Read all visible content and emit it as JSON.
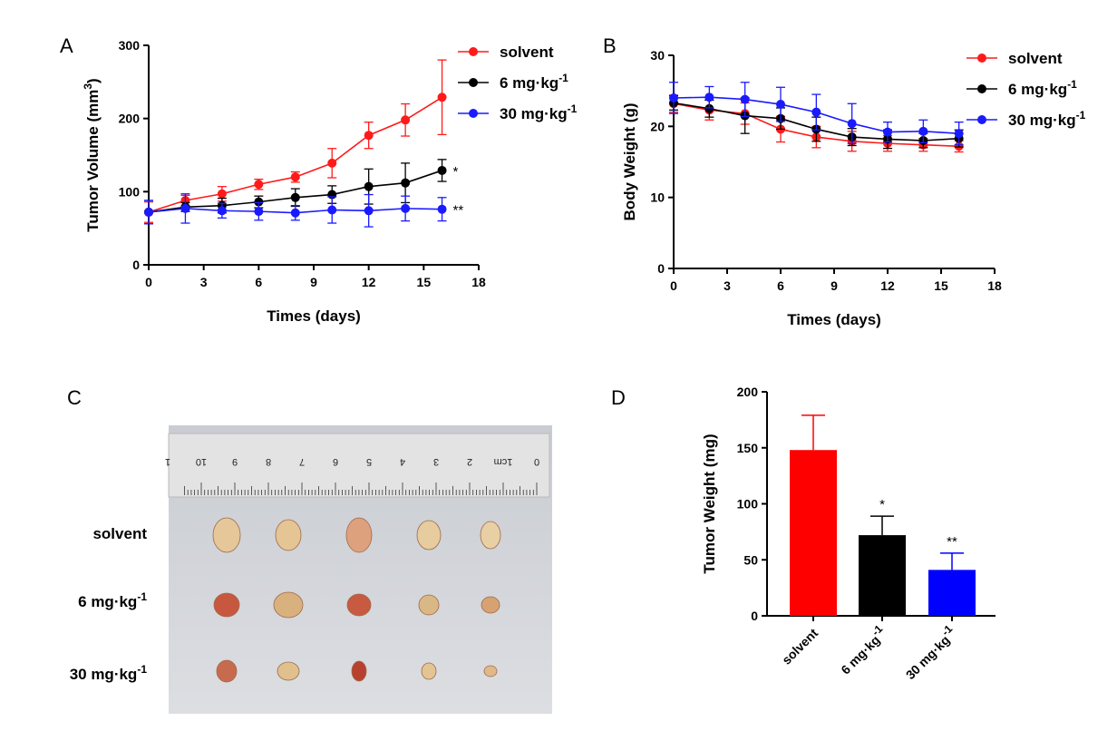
{
  "panels": {
    "a": "A",
    "b": "B",
    "c": "C",
    "d": "D"
  },
  "chart_data": [
    {
      "id": "A",
      "type": "line",
      "xlabel": "Times (days)",
      "ylabel_main": "Tumor Volume (mm",
      "ylabel_sup": "3",
      "ylabel_end": ")",
      "xlim": [
        0,
        18
      ],
      "ylim": [
        0,
        300
      ],
      "xticks": [
        0,
        3,
        6,
        9,
        12,
        15,
        18
      ],
      "yticks": [
        0,
        100,
        200,
        300
      ],
      "x": [
        0,
        2,
        4,
        6,
        8,
        10,
        12,
        14,
        16
      ],
      "series": [
        {
          "name": "solvent",
          "color": "#ff1a1a",
          "values": [
            72,
            88,
            97,
            110,
            120,
            139,
            177,
            198,
            229
          ],
          "err": [
            14,
            7,
            10,
            7,
            7,
            20,
            18,
            22,
            51
          ]
        },
        {
          "name_main": "6 mg·kg",
          "name_sup": "-1",
          "color": "#000000",
          "values": [
            72,
            79,
            81,
            86,
            92,
            96,
            107,
            112,
            129
          ],
          "err": [
            16,
            6,
            10,
            8,
            12,
            12,
            24,
            27,
            15
          ],
          "annotation": "*"
        },
        {
          "name_main": "30 mg·kg",
          "name_sup": "-1",
          "color": "#1a1aff",
          "values": [
            72,
            77,
            74,
            73,
            71,
            75,
            74,
            77,
            76
          ],
          "err": [
            16,
            20,
            10,
            12,
            10,
            18,
            22,
            17,
            16
          ],
          "annotation": "**"
        }
      ],
      "legend": "top-right"
    },
    {
      "id": "B",
      "type": "line",
      "xlabel": "Times (days)",
      "ylabel": "Body Weight (g)",
      "xlim": [
        0,
        18
      ],
      "ylim": [
        0,
        30
      ],
      "xticks": [
        0,
        3,
        6,
        9,
        12,
        15,
        18
      ],
      "yticks": [
        0,
        10,
        20,
        30
      ],
      "x": [
        0,
        2,
        4,
        6,
        8,
        10,
        12,
        14,
        16
      ],
      "series": [
        {
          "name": "solvent",
          "color": "#ff1a1a",
          "values": [
            23.2,
            22.3,
            21.8,
            19.6,
            18.5,
            17.9,
            17.6,
            17.4,
            17.2
          ],
          "err": [
            1.2,
            1.4,
            1.5,
            1.8,
            1.5,
            1.4,
            1.1,
            0.9,
            0.8
          ]
        },
        {
          "name_main": "6 mg·kg",
          "name_sup": "-1",
          "color": "#000000",
          "values": [
            23.3,
            22.5,
            21.5,
            21.1,
            19.6,
            18.5,
            18.2,
            18.0,
            18.3
          ],
          "err": [
            1.0,
            1.2,
            2.5,
            1.5,
            1.7,
            1.2,
            1.3,
            1.0,
            1.2
          ]
        },
        {
          "name_main": "30 mg·kg",
          "name_sup": "-1",
          "color": "#1a1aff",
          "values": [
            24.0,
            24.1,
            23.8,
            23.1,
            22.0,
            20.4,
            19.2,
            19.3,
            19.0
          ],
          "err": [
            2.2,
            1.5,
            2.4,
            2.4,
            2.5,
            2.8,
            1.4,
            1.6,
            1.6
          ]
        }
      ],
      "legend": "top-right"
    },
    {
      "id": "D",
      "type": "bar",
      "ylabel": "Tumor Weight (mg)",
      "ylim": [
        0,
        200
      ],
      "yticks": [
        0,
        50,
        100,
        150,
        200
      ],
      "bars": [
        {
          "main": "solvent",
          "sup": "",
          "value": 148,
          "err": 31,
          "color": "#ff0000",
          "annotation": ""
        },
        {
          "main": "6 mg·kg",
          "sup": "-1",
          "value": 72,
          "err": 17,
          "color": "#000000",
          "annotation": "*"
        },
        {
          "main": "30 mg·kg",
          "sup": "-1",
          "value": 41,
          "err": 15,
          "color": "#0000ff",
          "annotation": "**"
        }
      ]
    }
  ],
  "photo": {
    "rows": [
      {
        "main": "solvent",
        "sup": ""
      },
      {
        "main": "6 mg·kg",
        "sup": "-1"
      },
      {
        "main": "30 mg·kg",
        "sup": "-1"
      }
    ],
    "ruler_marks": [
      "0",
      "1cm",
      "2",
      "3",
      "4",
      "5",
      "6",
      "7",
      "8",
      "9",
      "10",
      "1"
    ]
  }
}
